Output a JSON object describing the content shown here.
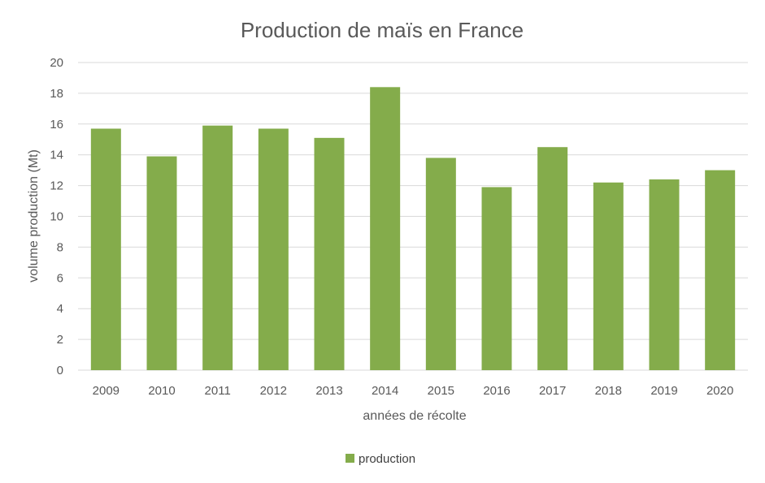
{
  "chart_data": {
    "type": "bar",
    "title": "Production de maïs en France",
    "xlabel": "années de récolte",
    "ylabel": "volume production (Mt)",
    "categories": [
      "2009",
      "2010",
      "2011",
      "2012",
      "2013",
      "2014",
      "2015",
      "2016",
      "2017",
      "2018",
      "2019",
      "2020"
    ],
    "series": [
      {
        "name": "production",
        "values": [
          15.7,
          13.9,
          15.9,
          15.7,
          15.1,
          18.4,
          13.8,
          11.9,
          14.5,
          12.2,
          12.4,
          13.0
        ],
        "color": "#84ac4b"
      }
    ],
    "ylim": [
      0,
      20
    ],
    "yticks": [
      "0",
      "2",
      "4",
      "6",
      "8",
      "10",
      "12",
      "14",
      "16",
      "18",
      "20"
    ],
    "grid": true,
    "legend_position": "bottom"
  }
}
